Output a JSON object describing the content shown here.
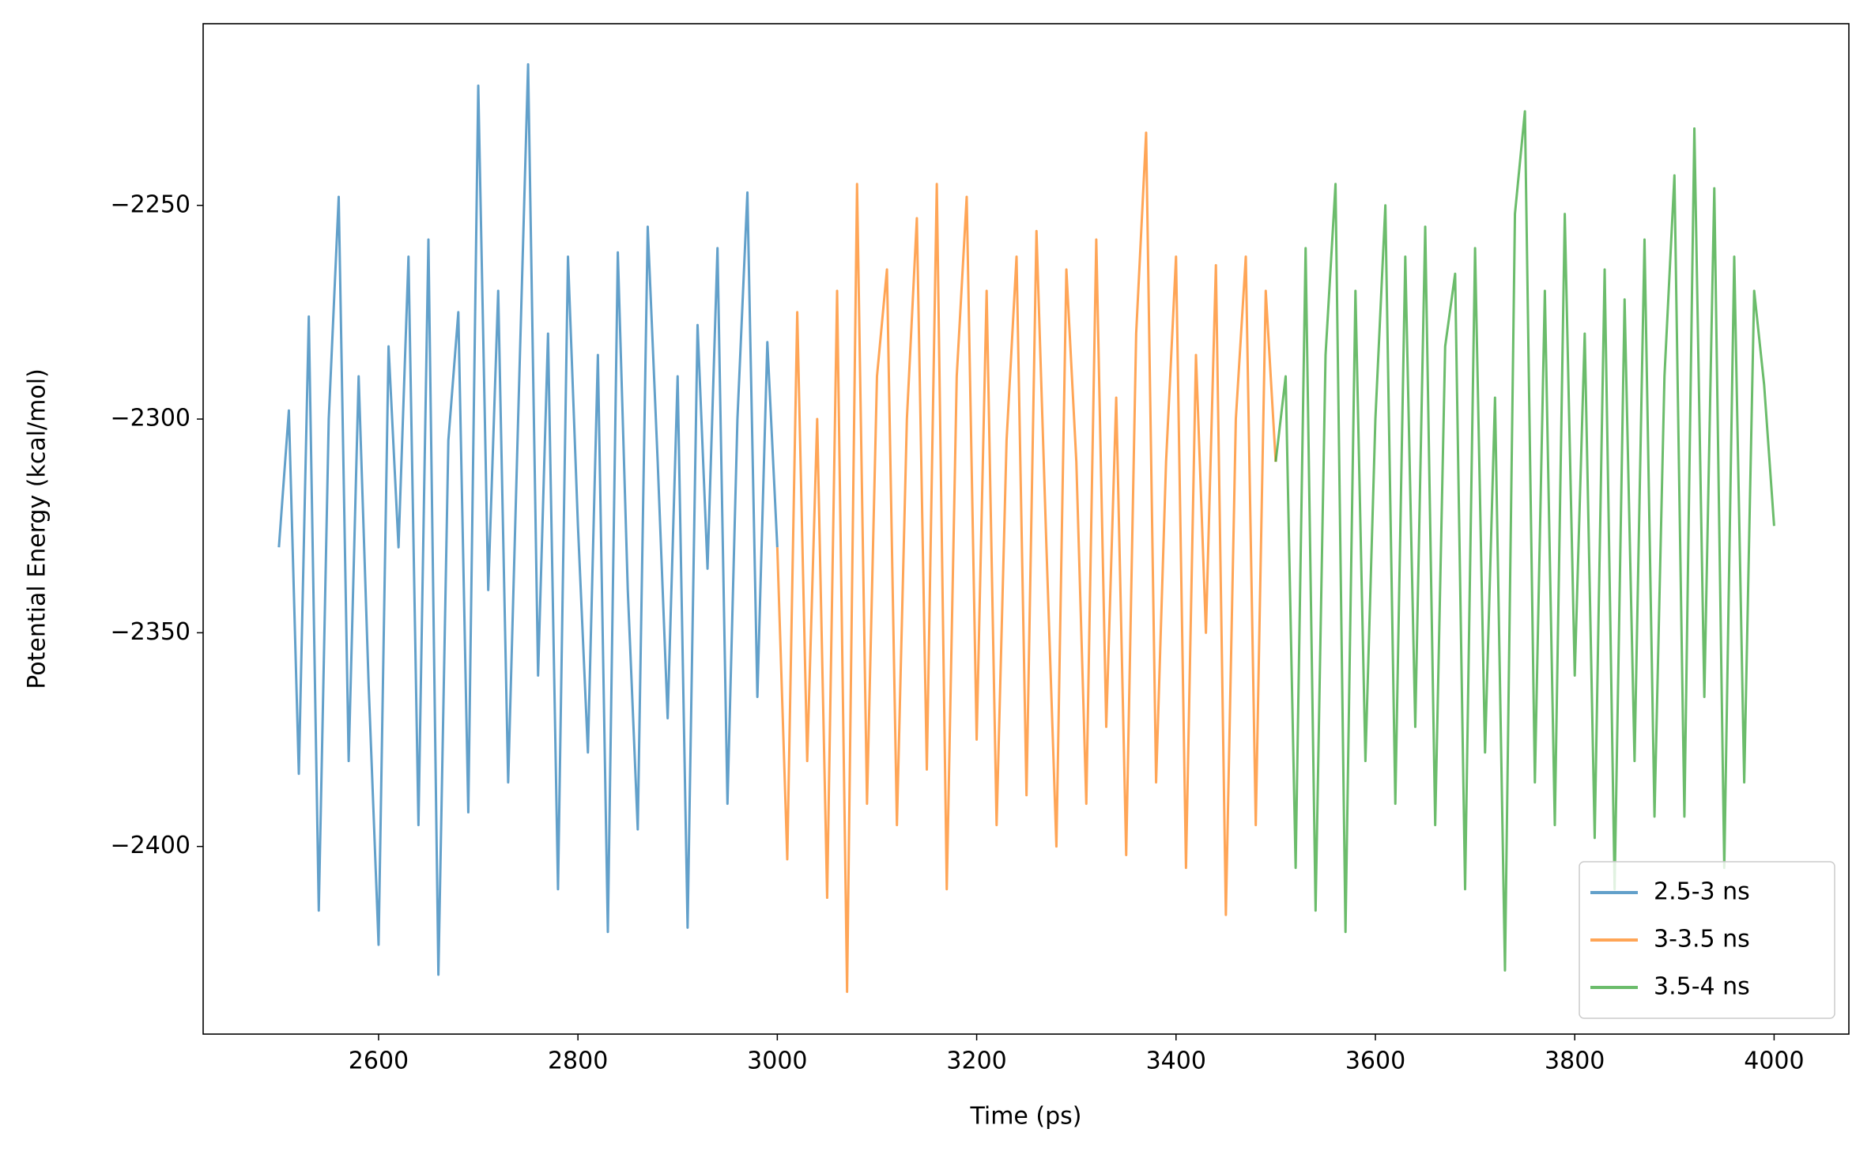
{
  "chart_data": {
    "type": "line",
    "xlabel": "Time (ps)",
    "ylabel": "Potential Energy (kcal/mol)",
    "xlim": [
      2424,
      4075
    ],
    "ylim": [
      -2443.9,
      -2207.5
    ],
    "xticks": [
      2600,
      2800,
      3000,
      3200,
      3400,
      3600,
      3800,
      4000
    ],
    "yticks": [
      {
        "value": -2400,
        "label": "−2400"
      },
      {
        "value": -2350,
        "label": "−2350"
      },
      {
        "value": -2300,
        "label": "−2300"
      },
      {
        "value": -2250,
        "label": "−2250"
      }
    ],
    "grid": false,
    "legend": "lower right",
    "alpha": 0.7,
    "series": [
      {
        "name": "2.5-3 ns",
        "color": "#1f77b4",
        "x": [
          2500,
          2510,
          2520,
          2530,
          2540,
          2550,
          2560,
          2570,
          2580,
          2590,
          2600,
          2610,
          2620,
          2630,
          2640,
          2650,
          2660,
          2670,
          2680,
          2690,
          2700,
          2710,
          2720,
          2730,
          2740,
          2750,
          2760,
          2770,
          2780,
          2790,
          2800,
          2810,
          2820,
          2830,
          2840,
          2850,
          2860,
          2870,
          2880,
          2890,
          2900,
          2910,
          2920,
          2930,
          2940,
          2950,
          2960,
          2970,
          2980,
          2990,
          3000
        ],
        "values": [
          -2330,
          -2298,
          -2383,
          -2276,
          -2415,
          -2300,
          -2248,
          -2380,
          -2290,
          -2362,
          -2423,
          -2283,
          -2330,
          -2262,
          -2395,
          -2258,
          -2430,
          -2305,
          -2275,
          -2392,
          -2222,
          -2340,
          -2270,
          -2385,
          -2300,
          -2217,
          -2360,
          -2280,
          -2410,
          -2262,
          -2325,
          -2378,
          -2285,
          -2420,
          -2261,
          -2340,
          -2396,
          -2255,
          -2310,
          -2370,
          -2290,
          -2419,
          -2278,
          -2335,
          -2260,
          -2390,
          -2300,
          -2247,
          -2365,
          -2282,
          -2330
        ]
      },
      {
        "name": "3-3.5 ns",
        "color": "#ff7f0e",
        "x": [
          3000,
          3010,
          3020,
          3030,
          3040,
          3050,
          3060,
          3070,
          3080,
          3090,
          3100,
          3110,
          3120,
          3130,
          3140,
          3150,
          3160,
          3170,
          3180,
          3190,
          3200,
          3210,
          3220,
          3230,
          3240,
          3250,
          3260,
          3270,
          3280,
          3290,
          3300,
          3310,
          3320,
          3330,
          3340,
          3350,
          3360,
          3370,
          3380,
          3390,
          3400,
          3410,
          3420,
          3430,
          3440,
          3450,
          3460,
          3470,
          3480,
          3490,
          3500
        ],
        "values": [
          -2330,
          -2403,
          -2275,
          -2380,
          -2300,
          -2412,
          -2270,
          -2434,
          -2245,
          -2390,
          -2290,
          -2265,
          -2395,
          -2300,
          -2253,
          -2382,
          -2245,
          -2410,
          -2290,
          -2248,
          -2375,
          -2270,
          -2395,
          -2305,
          -2262,
          -2388,
          -2256,
          -2330,
          -2400,
          -2265,
          -2310,
          -2390,
          -2258,
          -2372,
          -2295,
          -2402,
          -2280,
          -2233,
          -2385,
          -2310,
          -2262,
          -2405,
          -2285,
          -2350,
          -2264,
          -2416,
          -2300,
          -2262,
          -2395,
          -2270,
          -2310
        ]
      },
      {
        "name": "3.5-4 ns",
        "color": "#2ca02c",
        "x": [
          3500,
          3510,
          3520,
          3530,
          3540,
          3550,
          3560,
          3570,
          3580,
          3590,
          3600,
          3610,
          3620,
          3630,
          3640,
          3650,
          3660,
          3670,
          3680,
          3690,
          3700,
          3710,
          3720,
          3730,
          3740,
          3750,
          3760,
          3770,
          3780,
          3790,
          3800,
          3810,
          3820,
          3830,
          3840,
          3850,
          3860,
          3870,
          3880,
          3890,
          3900,
          3910,
          3920,
          3930,
          3940,
          3950,
          3960,
          3970,
          3980,
          3990,
          4000
        ],
        "values": [
          -2310,
          -2290,
          -2405,
          -2260,
          -2415,
          -2285,
          -2245,
          -2420,
          -2270,
          -2380,
          -2300,
          -2250,
          -2390,
          -2262,
          -2372,
          -2255,
          -2395,
          -2283,
          -2266,
          -2410,
          -2260,
          -2378,
          -2295,
          -2429,
          -2252,
          -2228,
          -2385,
          -2270,
          -2395,
          -2252,
          -2360,
          -2280,
          -2398,
          -2265,
          -2410,
          -2272,
          -2380,
          -2258,
          -2393,
          -2290,
          -2243,
          -2393,
          -2232,
          -2365,
          -2246,
          -2405,
          -2262,
          -2385,
          -2270,
          -2292,
          -2325
        ]
      }
    ]
  }
}
